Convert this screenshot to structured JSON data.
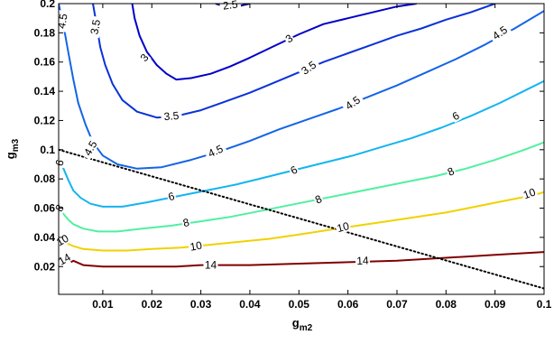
{
  "chart_data": {
    "type": "line",
    "title": "",
    "xlabel": {
      "main": "g",
      "sub": "m2"
    },
    "ylabel": {
      "main": "g",
      "sub": "m3"
    },
    "xlim": [
      0.001,
      0.1
    ],
    "ylim": [
      0.001,
      0.2
    ],
    "xticks": [
      {
        "v": 0.01,
        "label": "0.01"
      },
      {
        "v": 0.02,
        "label": "0.02"
      },
      {
        "v": 0.03,
        "label": "0.03"
      },
      {
        "v": 0.04,
        "label": "0.04"
      },
      {
        "v": 0.05,
        "label": "0.05"
      },
      {
        "v": 0.06,
        "label": "0.06"
      },
      {
        "v": 0.07,
        "label": "0.07"
      },
      {
        "v": 0.08,
        "label": "0.08"
      },
      {
        "v": 0.09,
        "label": "0.09"
      },
      {
        "v": 0.1,
        "label": "0.1"
      }
    ],
    "yticks": [
      {
        "v": 0.02,
        "label": "0.02"
      },
      {
        "v": 0.04,
        "label": "0.04"
      },
      {
        "v": 0.06,
        "label": "0.06"
      },
      {
        "v": 0.08,
        "label": "0.08"
      },
      {
        "v": 0.1,
        "label": "0.1"
      },
      {
        "v": 0.12,
        "label": "0.12"
      },
      {
        "v": 0.14,
        "label": "0.14"
      },
      {
        "v": 0.16,
        "label": "0.16"
      },
      {
        "v": 0.18,
        "label": "0.18"
      },
      {
        "v": 0.2,
        "label": "0.2"
      }
    ],
    "grid": false,
    "series": [
      {
        "level": "2.5",
        "color": "#00008f",
        "points": [
          [
            0.033,
            0.2
          ],
          [
            0.036,
            0.197
          ],
          [
            0.04,
            0.2
          ]
        ],
        "labels": [
          {
            "x": 0.036,
            "y": 0.199,
            "rot": -8
          }
        ]
      },
      {
        "level": "3",
        "color": "#0000c8",
        "points": [
          [
            0.016,
            0.2
          ],
          [
            0.0165,
            0.19
          ],
          [
            0.0175,
            0.178
          ],
          [
            0.019,
            0.167
          ],
          [
            0.021,
            0.158
          ],
          [
            0.023,
            0.152
          ],
          [
            0.025,
            0.148
          ],
          [
            0.028,
            0.149
          ],
          [
            0.032,
            0.152
          ],
          [
            0.036,
            0.157
          ],
          [
            0.04,
            0.163
          ],
          [
            0.045,
            0.171
          ],
          [
            0.05,
            0.179
          ],
          [
            0.055,
            0.186
          ],
          [
            0.06,
            0.19
          ],
          [
            0.065,
            0.194
          ],
          [
            0.07,
            0.198
          ],
          [
            0.074,
            0.2
          ]
        ],
        "labels": [
          {
            "x": 0.0185,
            "y": 0.163,
            "rot": -50
          },
          {
            "x": 0.048,
            "y": 0.176,
            "rot": -35
          }
        ]
      },
      {
        "level": "3.5",
        "color": "#0a32d8",
        "points": [
          [
            0.008,
            0.2
          ],
          [
            0.0085,
            0.19
          ],
          [
            0.009,
            0.18
          ],
          [
            0.0095,
            0.17
          ],
          [
            0.0105,
            0.158
          ],
          [
            0.012,
            0.145
          ],
          [
            0.014,
            0.134
          ],
          [
            0.017,
            0.126
          ],
          [
            0.021,
            0.122
          ],
          [
            0.025,
            0.123
          ],
          [
            0.03,
            0.127
          ],
          [
            0.035,
            0.133
          ],
          [
            0.04,
            0.139
          ],
          [
            0.045,
            0.146
          ],
          [
            0.05,
            0.153
          ],
          [
            0.055,
            0.16
          ],
          [
            0.06,
            0.166
          ],
          [
            0.065,
            0.172
          ],
          [
            0.07,
            0.178
          ],
          [
            0.075,
            0.183
          ],
          [
            0.08,
            0.189
          ],
          [
            0.085,
            0.194
          ],
          [
            0.09,
            0.2
          ]
        ],
        "labels": [
          {
            "x": 0.0085,
            "y": 0.184,
            "rot": -80
          },
          {
            "x": 0.024,
            "y": 0.123,
            "rot": -5
          },
          {
            "x": 0.052,
            "y": 0.156,
            "rot": -35
          }
        ]
      },
      {
        "level": "4.5",
        "color": "#1464e6",
        "points": [
          [
            0.001,
            0.2
          ],
          [
            0.002,
            0.185
          ],
          [
            0.003,
            0.166
          ],
          [
            0.004,
            0.148
          ],
          [
            0.005,
            0.132
          ],
          [
            0.0065,
            0.117
          ],
          [
            0.008,
            0.105
          ],
          [
            0.01,
            0.096
          ],
          [
            0.013,
            0.09
          ],
          [
            0.017,
            0.087
          ],
          [
            0.022,
            0.088
          ],
          [
            0.028,
            0.093
          ],
          [
            0.034,
            0.099
          ],
          [
            0.04,
            0.106
          ],
          [
            0.046,
            0.114
          ],
          [
            0.052,
            0.121
          ],
          [
            0.058,
            0.128
          ],
          [
            0.064,
            0.136
          ],
          [
            0.07,
            0.144
          ],
          [
            0.076,
            0.153
          ],
          [
            0.082,
            0.162
          ],
          [
            0.088,
            0.172
          ],
          [
            0.094,
            0.183
          ],
          [
            0.1,
            0.195
          ]
        ],
        "labels": [
          {
            "x": 0.0018,
            "y": 0.188,
            "rot": -80
          },
          {
            "x": 0.0075,
            "y": 0.101,
            "rot": -60
          },
          {
            "x": 0.033,
            "y": 0.099,
            "rot": -25
          },
          {
            "x": 0.061,
            "y": 0.132,
            "rot": -35
          },
          {
            "x": 0.091,
            "y": 0.18,
            "rot": -35
          }
        ]
      },
      {
        "level": "6",
        "color": "#14b4f0",
        "points": [
          [
            0.001,
            0.094
          ],
          [
            0.002,
            0.087
          ],
          [
            0.003,
            0.079
          ],
          [
            0.004,
            0.072
          ],
          [
            0.0055,
            0.067
          ],
          [
            0.0075,
            0.063
          ],
          [
            0.01,
            0.061
          ],
          [
            0.014,
            0.061
          ],
          [
            0.019,
            0.064
          ],
          [
            0.025,
            0.068
          ],
          [
            0.031,
            0.072
          ],
          [
            0.037,
            0.076
          ],
          [
            0.043,
            0.081
          ],
          [
            0.049,
            0.086
          ],
          [
            0.055,
            0.091
          ],
          [
            0.061,
            0.096
          ],
          [
            0.067,
            0.102
          ],
          [
            0.073,
            0.108
          ],
          [
            0.079,
            0.115
          ],
          [
            0.085,
            0.123
          ],
          [
            0.091,
            0.132
          ],
          [
            0.097,
            0.142
          ],
          [
            0.1,
            0.147
          ]
        ],
        "labels": [
          {
            "x": 0.0012,
            "y": 0.091,
            "rot": -75
          },
          {
            "x": 0.024,
            "y": 0.068,
            "rot": -15
          },
          {
            "x": 0.049,
            "y": 0.086,
            "rot": -30
          },
          {
            "x": 0.082,
            "y": 0.123,
            "rot": -30
          }
        ]
      },
      {
        "level": "8",
        "color": "#50f0a0",
        "points": [
          [
            0.001,
            0.061
          ],
          [
            0.002,
            0.056
          ],
          [
            0.003,
            0.052
          ],
          [
            0.004,
            0.049
          ],
          [
            0.006,
            0.046
          ],
          [
            0.009,
            0.044
          ],
          [
            0.013,
            0.044
          ],
          [
            0.018,
            0.046
          ],
          [
            0.024,
            0.048
          ],
          [
            0.03,
            0.051
          ],
          [
            0.036,
            0.054
          ],
          [
            0.042,
            0.058
          ],
          [
            0.048,
            0.062
          ],
          [
            0.054,
            0.066
          ],
          [
            0.06,
            0.07
          ],
          [
            0.066,
            0.074
          ],
          [
            0.072,
            0.078
          ],
          [
            0.078,
            0.082
          ],
          [
            0.084,
            0.087
          ],
          [
            0.09,
            0.093
          ],
          [
            0.096,
            0.1
          ],
          [
            0.1,
            0.105
          ]
        ],
        "labels": [
          {
            "x": 0.0012,
            "y": 0.06,
            "rot": -60
          },
          {
            "x": 0.027,
            "y": 0.05,
            "rot": -15
          },
          {
            "x": 0.054,
            "y": 0.066,
            "rot": -25
          },
          {
            "x": 0.081,
            "y": 0.085,
            "rot": -25
          }
        ]
      },
      {
        "level": "10",
        "color": "#f0d200",
        "points": [
          [
            0.001,
            0.041
          ],
          [
            0.002,
            0.037
          ],
          [
            0.004,
            0.034
          ],
          [
            0.006,
            0.032
          ],
          [
            0.01,
            0.031
          ],
          [
            0.015,
            0.031
          ],
          [
            0.02,
            0.032
          ],
          [
            0.026,
            0.033
          ],
          [
            0.032,
            0.035
          ],
          [
            0.038,
            0.037
          ],
          [
            0.044,
            0.039
          ],
          [
            0.05,
            0.042
          ],
          [
            0.056,
            0.045
          ],
          [
            0.062,
            0.048
          ],
          [
            0.068,
            0.051
          ],
          [
            0.074,
            0.054
          ],
          [
            0.08,
            0.057
          ],
          [
            0.086,
            0.061
          ],
          [
            0.092,
            0.065
          ],
          [
            0.098,
            0.069
          ],
          [
            0.1,
            0.071
          ]
        ],
        "labels": [
          {
            "x": 0.0018,
            "y": 0.038,
            "rot": -30
          },
          {
            "x": 0.029,
            "y": 0.034,
            "rot": -10
          },
          {
            "x": 0.059,
            "y": 0.047,
            "rot": -15
          },
          {
            "x": 0.097,
            "y": 0.07,
            "rot": -20
          }
        ]
      },
      {
        "level": "14",
        "color": "#800000",
        "points": [
          [
            0.0035,
            0.023
          ],
          [
            0.004,
            0.024
          ],
          [
            0.006,
            0.021
          ],
          [
            0.01,
            0.02
          ],
          [
            0.015,
            0.02
          ],
          [
            0.02,
            0.02
          ],
          [
            0.025,
            0.02
          ],
          [
            0.03,
            0.021
          ],
          [
            0.04,
            0.021
          ],
          [
            0.05,
            0.022
          ],
          [
            0.06,
            0.023
          ],
          [
            0.07,
            0.024
          ],
          [
            0.08,
            0.026
          ],
          [
            0.09,
            0.028
          ],
          [
            0.1,
            0.03
          ]
        ],
        "labels": [
          {
            "x": 0.032,
            "y": 0.021,
            "rot": 0
          },
          {
            "x": 0.063,
            "y": 0.024,
            "rot": -3
          }
        ]
      }
    ],
    "extra_labels": [
      {
        "text": "14",
        "x": 0.0022,
        "y": 0.025,
        "rot": -30
      }
    ],
    "reference_line": {
      "style": "dotted",
      "color": "#000000",
      "points": [
        [
          0.001,
          0.1
        ],
        [
          0.1,
          0.005
        ]
      ]
    }
  }
}
